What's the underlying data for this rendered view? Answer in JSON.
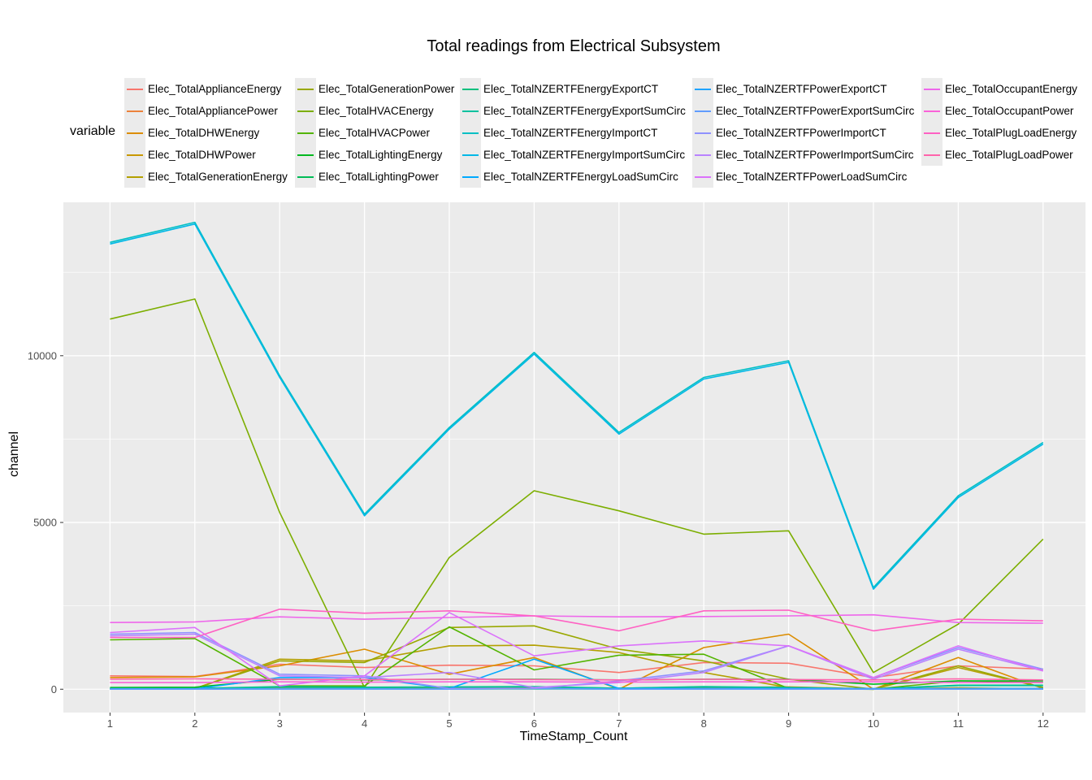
{
  "chart_data": {
    "type": "line",
    "title": "Total readings from Electrical Subsystem",
    "xlabel": "TimeStamp_Count",
    "ylabel": "channel",
    "legend_title": "variable",
    "legend_position": "top",
    "x": [
      1,
      2,
      3,
      4,
      5,
      6,
      7,
      8,
      9,
      10,
      11,
      12
    ],
    "xlim": [
      0.45,
      12.5
    ],
    "ylim": [
      -700,
      14600
    ],
    "x_ticks": [
      1,
      2,
      3,
      4,
      5,
      6,
      7,
      8,
      9,
      10,
      11,
      12
    ],
    "y_ticks": [
      0,
      5000,
      10000
    ],
    "y_tick_labels": [
      "0",
      "5000",
      "10000"
    ],
    "grid": true,
    "series": [
      {
        "name": "Elec_TotalApplianceEnergy",
        "color": "#F8766D",
        "values": [
          400,
          380,
          750,
          650,
          720,
          700,
          500,
          800,
          780,
          350,
          700,
          600
        ]
      },
      {
        "name": "Elec_TotalAppliancePower",
        "color": "#EC823C",
        "values": [
          10,
          10,
          20,
          20,
          30,
          20,
          20,
          30,
          30,
          10,
          20,
          20
        ]
      },
      {
        "name": "Elec_TotalDHWEnergy",
        "color": "#DC8D00",
        "values": [
          350,
          370,
          700,
          1200,
          450,
          950,
          0,
          1250,
          1650,
          0,
          950,
          20
        ]
      },
      {
        "name": "Elec_TotalDHWPower",
        "color": "#C99800",
        "values": [
          20,
          20,
          30,
          50,
          20,
          40,
          10,
          50,
          70,
          10,
          40,
          10
        ]
      },
      {
        "name": "Elec_TotalGenerationEnergy",
        "color": "#B3A000",
        "values": [
          20,
          20,
          900,
          850,
          1300,
          1320,
          1100,
          500,
          50,
          0,
          650,
          50
        ]
      },
      {
        "name": "Elec_TotalGenerationPower",
        "color": "#99A800",
        "values": [
          20,
          20,
          850,
          800,
          1850,
          1900,
          1200,
          850,
          300,
          0,
          700,
          50
        ]
      },
      {
        "name": "Elec_TotalHVACEnergy",
        "color": "#7CAE00",
        "values": [
          11100,
          11700,
          5300,
          50,
          3950,
          5950,
          5350,
          4650,
          4750,
          500,
          1950,
          4500
        ]
      },
      {
        "name": "Elec_TotalHVACPower",
        "color": "#53B400",
        "values": [
          1480,
          1520,
          100,
          100,
          1870,
          580,
          1020,
          1050,
          20,
          0,
          250,
          200
        ]
      },
      {
        "name": "Elec_TotalLightingEnergy",
        "color": "#00B81F",
        "values": [
          50,
          60,
          300,
          280,
          300,
          300,
          280,
          300,
          300,
          150,
          250,
          250
        ]
      },
      {
        "name": "Elec_TotalLightingPower",
        "color": "#00BC56",
        "values": [
          5,
          5,
          10,
          10,
          10,
          10,
          10,
          10,
          10,
          5,
          10,
          10
        ]
      },
      {
        "name": "Elec_TotalNZERTFEnergyExportCT",
        "color": "#00BF7D",
        "values": [
          20,
          20,
          80,
          60,
          70,
          80,
          30,
          80,
          50,
          10,
          120,
          120
        ]
      },
      {
        "name": "Elec_TotalNZERTFEnergyExportSumCirc",
        "color": "#00C19F",
        "values": [
          20,
          20,
          60,
          50,
          60,
          70,
          30,
          70,
          50,
          10,
          110,
          110
        ]
      },
      {
        "name": "Elec_TotalNZERTFEnergyImportCT",
        "color": "#00BFC4",
        "values": [
          13400,
          14000,
          9400,
          5250,
          7850,
          10100,
          7700,
          9350,
          9850,
          3050,
          5800,
          7400
        ]
      },
      {
        "name": "Elec_TotalNZERTFEnergyImportSumCirc",
        "color": "#00B8E7",
        "values": [
          13350,
          13950,
          9350,
          5200,
          7800,
          10050,
          7650,
          9300,
          9800,
          3000,
          5750,
          7350
        ]
      },
      {
        "name": "Elec_TotalNZERTFEnergyLoadSumCirc",
        "color": "#00A9FF",
        "values": [
          10,
          10,
          350,
          350,
          20,
          900,
          20,
          20,
          20,
          20,
          20,
          20
        ]
      },
      {
        "name": "Elec_TotalNZERTFPowerExportCT",
        "color": "#1FA4FF",
        "values": [
          5,
          5,
          10,
          10,
          5,
          20,
          5,
          5,
          5,
          5,
          5,
          5
        ]
      },
      {
        "name": "Elec_TotalNZERTFPowerExportSumCirc",
        "color": "#619CFF",
        "values": [
          5,
          5,
          10,
          10,
          5,
          20,
          5,
          5,
          5,
          5,
          5,
          5
        ]
      },
      {
        "name": "Elec_TotalNZERTFPowerImportCT",
        "color": "#8F91FF",
        "values": [
          1650,
          1700,
          450,
          400,
          20,
          20,
          250,
          550,
          1300,
          350,
          1250,
          600
        ]
      },
      {
        "name": "Elec_TotalNZERTFPowerImportSumCirc",
        "color": "#B983FF",
        "values": [
          1600,
          1650,
          400,
          350,
          500,
          50,
          200,
          500,
          1300,
          300,
          1200,
          550
        ]
      },
      {
        "name": "Elec_TotalNZERTFPowerLoadSumCirc",
        "color": "#DB72FB",
        "values": [
          1700,
          1850,
          100,
          400,
          2300,
          1000,
          1300,
          1450,
          1300,
          350,
          1300,
          550
        ]
      },
      {
        "name": "Elec_TotalOccupantEnergy",
        "color": "#EE67EB",
        "values": [
          2000,
          2020,
          2170,
          2100,
          2150,
          2200,
          2170,
          2180,
          2200,
          2230,
          2000,
          1980
        ]
      },
      {
        "name": "Elec_TotalOccupantPower",
        "color": "#FA62D8",
        "values": [
          200,
          200,
          220,
          210,
          220,
          220,
          210,
          220,
          220,
          220,
          200,
          200
        ]
      },
      {
        "name": "Elec_TotalPlugLoadEnergy",
        "color": "#FF61C3",
        "values": [
          1550,
          1550,
          2400,
          2280,
          2350,
          2200,
          1750,
          2350,
          2370,
          1750,
          2100,
          2050
        ]
      },
      {
        "name": "Elec_TotalPlugLoadPower",
        "color": "#FF64AB",
        "values": [
          300,
          310,
          300,
          290,
          300,
          290,
          280,
          300,
          290,
          280,
          310,
          280
        ]
      }
    ]
  }
}
